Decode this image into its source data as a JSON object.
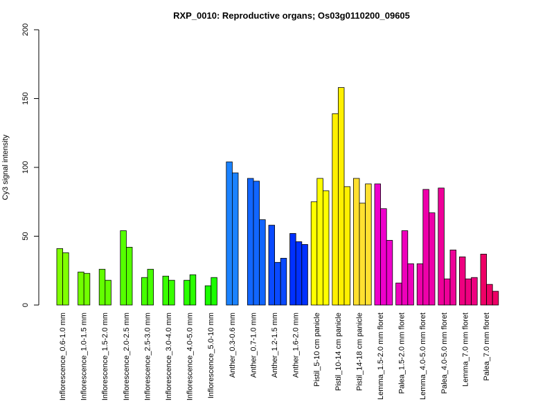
{
  "chart_data": {
    "type": "bar",
    "title": "RXP_0010: Reproductive organs; Os03g0110200_09605",
    "xlabel": "",
    "ylabel": "Cy3 signal intensity",
    "ylim": [
      0,
      200
    ],
    "yticks": [
      "0",
      "50",
      "100",
      "150",
      "200"
    ],
    "grid": false,
    "categories": [
      "Inflorescence_0.6-1.0 mm",
      "Inflorescence_1.0-1.5 mm",
      "Inflorescence_1.5-2.0 mm",
      "Inflorescence_2.0-2.5 mm",
      "Inflorescence_2.5-3.0 mm",
      "Inflorescence_3.0-4.0 mm",
      "Inflorescence_4.0-5.0 mm",
      "Inflorescence_5.0-10 mm",
      "Anther_0.3-0.6 mm",
      "Anther_0.7-1.0 mm",
      "Anther_1.2-1.5 mm",
      "Anther_1.6-2.0 mm",
      "Pistil_5-10 cm panicle",
      "Pistil_10-14 cm panicle",
      "Pistil_14-18 cm panicle",
      "Lemma_1.5-2.0 mm floret",
      "Palea_1.5-2.0 mm floret",
      "Lemma_4.0-5.0 mm floret",
      "Palea_4.0-5.0 mm floret",
      "Lemma_7.0 mm floret",
      "Palea_7.0 mm floret"
    ],
    "groups": [
      {
        "values": [
          41,
          38
        ],
        "color": "#80ff00"
      },
      {
        "values": [
          24,
          23
        ],
        "color": "#72ff00"
      },
      {
        "values": [
          26,
          18
        ],
        "color": "#63ff00"
      },
      {
        "values": [
          54,
          42
        ],
        "color": "#55ff00"
      },
      {
        "values": [
          20,
          26
        ],
        "color": "#46ff00"
      },
      {
        "values": [
          21,
          18
        ],
        "color": "#38ff00"
      },
      {
        "values": [
          18,
          22
        ],
        "color": "#2aff00"
      },
      {
        "values": [
          14,
          20
        ],
        "color": "#1bff00"
      },
      {
        "values": [
          104,
          96
        ],
        "color": "#1a82ff"
      },
      {
        "values": [
          92,
          90,
          62
        ],
        "color": "#1166ff"
      },
      {
        "values": [
          58,
          31,
          34
        ],
        "color": "#0a4aff"
      },
      {
        "values": [
          52,
          46,
          44
        ],
        "color": "#0030ff"
      },
      {
        "values": [
          75,
          92,
          83
        ],
        "color": "#ffff00"
      },
      {
        "values": [
          139,
          158,
          86
        ],
        "color": "#fff000"
      },
      {
        "values": [
          92,
          74,
          88
        ],
        "color": "#ffe030"
      },
      {
        "values": [
          88,
          70,
          47
        ],
        "color": "#ee00cc"
      },
      {
        "values": [
          16,
          54,
          30
        ],
        "color": "#ee00bb"
      },
      {
        "values": [
          30,
          84,
          67
        ],
        "color": "#ee00aa"
      },
      {
        "values": [
          85,
          19,
          40
        ],
        "color": "#ee0099"
      },
      {
        "values": [
          35,
          19,
          20
        ],
        "color": "#ee0080"
      },
      {
        "values": [
          37,
          15,
          10
        ],
        "color": "#ee0066"
      }
    ]
  }
}
